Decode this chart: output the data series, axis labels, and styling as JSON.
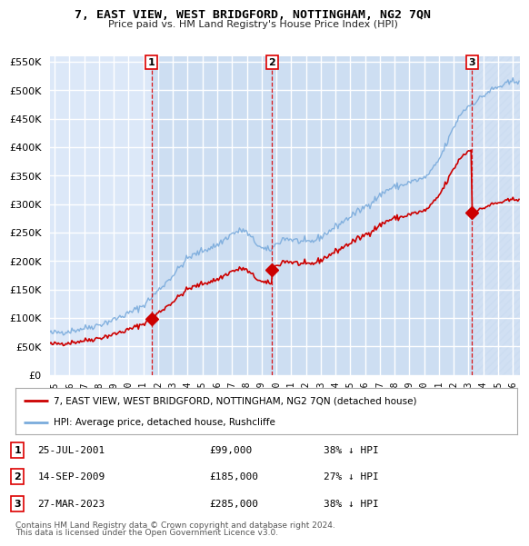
{
  "title": "7, EAST VIEW, WEST BRIDGFORD, NOTTINGHAM, NG2 7QN",
  "subtitle": "Price paid vs. HM Land Registry's House Price Index (HPI)",
  "transactions": [
    {
      "label": "1",
      "date_str": "25-JUL-2001",
      "year": 2001.56,
      "price": 99000,
      "pct": "38% ↓ HPI"
    },
    {
      "label": "2",
      "date_str": "14-SEP-2009",
      "year": 2009.71,
      "price": 185000,
      "pct": "27% ↓ HPI"
    },
    {
      "label": "3",
      "date_str": "27-MAR-2023",
      "year": 2023.23,
      "price": 285000,
      "pct": "38% ↓ HPI"
    }
  ],
  "legend_property": "7, EAST VIEW, WEST BRIDGFORD, NOTTINGHAM, NG2 7QN (detached house)",
  "legend_hpi": "HPI: Average price, detached house, Rushcliffe",
  "footnote1": "Contains HM Land Registry data © Crown copyright and database right 2024.",
  "footnote2": "This data is licensed under the Open Government Licence v3.0.",
  "ylim": [
    0,
    560000
  ],
  "yticks": [
    0,
    50000,
    100000,
    150000,
    200000,
    250000,
    300000,
    350000,
    400000,
    450000,
    500000,
    550000
  ],
  "xlim_start": 1994.7,
  "xlim_end": 2026.5,
  "background_color": "#ffffff",
  "plot_bg_color": "#dce8f8",
  "grid_color": "#ffffff",
  "red_color": "#cc0000",
  "blue_color": "#7aabdc",
  "vline_color": "#dd0000",
  "shade_color": "#c8daf0"
}
